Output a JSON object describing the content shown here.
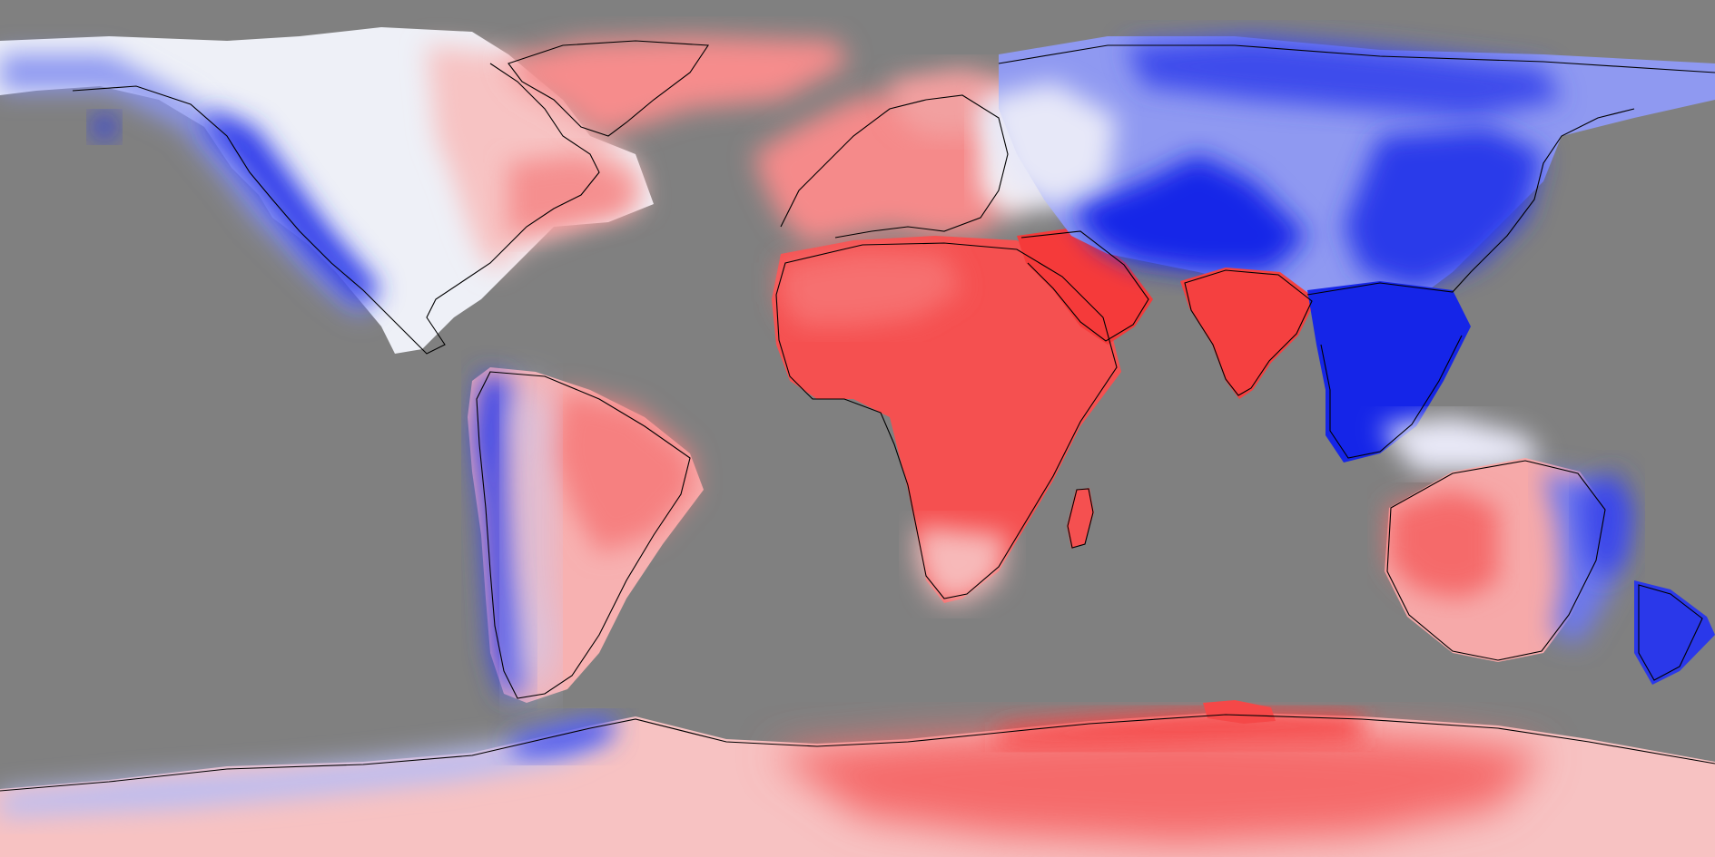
{
  "map": {
    "projection": "equirectangular",
    "variable_encoding": "diverging",
    "colors": {
      "ocean_masked": "#808080",
      "strong_negative": "#1525e8",
      "negative": "#6f7bf0",
      "weak_negative": "#c9cdf8",
      "neutral": "#f4f2f4",
      "weak_positive": "#f7c6c6",
      "positive": "#f77d7d",
      "strong_positive": "#f53a3a",
      "coastline": "#000000"
    },
    "regions": [
      {
        "name": "western-north-america",
        "tone": "negative"
      },
      {
        "name": "rocky-mountains",
        "tone": "strong_negative"
      },
      {
        "name": "central-north-america",
        "tone": "neutral"
      },
      {
        "name": "eastern-north-america",
        "tone": "weak_positive"
      },
      {
        "name": "greenland",
        "tone": "positive"
      },
      {
        "name": "andes",
        "tone": "negative"
      },
      {
        "name": "eastern-south-america",
        "tone": "positive"
      },
      {
        "name": "europe",
        "tone": "positive"
      },
      {
        "name": "africa",
        "tone": "strong_positive"
      },
      {
        "name": "arabian-peninsula",
        "tone": "strong_positive"
      },
      {
        "name": "india",
        "tone": "strong_positive"
      },
      {
        "name": "siberia",
        "tone": "negative"
      },
      {
        "name": "central-asia",
        "tone": "strong_negative"
      },
      {
        "name": "southeast-asia",
        "tone": "strong_negative"
      },
      {
        "name": "western-australia",
        "tone": "positive"
      },
      {
        "name": "eastern-australia",
        "tone": "negative"
      },
      {
        "name": "new-zealand",
        "tone": "strong_negative"
      },
      {
        "name": "west-antarctica",
        "tone": "weak_negative"
      },
      {
        "name": "east-antarctica",
        "tone": "positive"
      }
    ]
  }
}
